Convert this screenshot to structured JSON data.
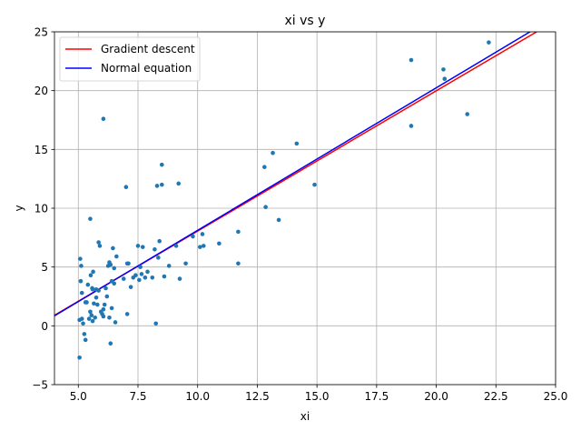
{
  "chart_data": {
    "type": "scatter",
    "title": "xi vs y",
    "xlabel": "xi",
    "ylabel": "y",
    "xlim": [
      4,
      25
    ],
    "ylim": [
      -5,
      25
    ],
    "xticks": [
      5.0,
      7.5,
      10.0,
      12.5,
      15.0,
      17.5,
      20.0,
      22.5,
      25.0
    ],
    "xtick_labels": [
      "5.0",
      "7.5",
      "10.0",
      "12.5",
      "15.0",
      "17.5",
      "20.0",
      "22.5",
      "25.0"
    ],
    "yticks": [
      -5,
      0,
      5,
      10,
      15,
      20,
      25
    ],
    "ytick_labels": [
      "−5",
      "0",
      "5",
      "10",
      "15",
      "20",
      "25"
    ],
    "grid": true,
    "legend_position": "top-left",
    "points": {
      "color": "#1f77b4",
      "x": [
        5.05,
        5.08,
        5.1,
        5.12,
        5.15,
        5.2,
        5.25,
        5.3,
        5.35,
        5.4,
        5.45,
        5.5,
        5.5,
        5.52,
        5.55,
        5.58,
        5.6,
        5.62,
        5.65,
        5.7,
        5.75,
        5.8,
        5.85,
        5.9,
        5.95,
        6.0,
        6.05,
        6.1,
        6.15,
        6.2,
        6.25,
        6.3,
        6.35,
        6.4,
        6.45,
        6.5,
        6.55,
        6.6,
        6.05,
        6.3,
        6.5,
        5.05,
        5.3,
        5.75,
        6.9,
        7.0,
        7.05,
        7.2,
        7.3,
        7.4,
        7.5,
        7.55,
        7.6,
        7.65,
        7.7,
        7.8,
        7.9,
        8.1,
        8.2,
        8.3,
        8.35,
        8.4,
        8.5,
        8.5,
        8.6,
        8.8,
        9.1,
        9.2,
        9.25,
        9.5,
        9.8,
        10.1,
        10.2,
        10.25,
        10.9,
        11.7,
        11.7,
        12.8,
        12.85,
        13.15,
        13.4,
        14.15,
        14.9,
        18.95,
        18.95,
        20.3,
        20.35,
        21.3,
        22.2,
        6.35,
        5.15,
        8.25,
        7.05,
        5.6,
        5.85,
        6.05,
        6.4,
        7.1
      ],
      "y": [
        -2.7,
        5.7,
        3.8,
        5.1,
        2.8,
        0.2,
        -0.7,
        -1.2,
        2.0,
        3.5,
        0.6,
        1.2,
        9.1,
        4.3,
        0.9,
        3.2,
        0.4,
        4.6,
        1.9,
        0.7,
        2.4,
        1.8,
        7.1,
        6.8,
        1.2,
        1.0,
        17.6,
        1.8,
        3.2,
        2.5,
        5.1,
        5.4,
        5.2,
        3.8,
        6.6,
        4.9,
        0.3,
        5.9,
        0.8,
        0.7,
        3.6,
        0.5,
        2.0,
        3.1,
        4.0,
        11.8,
        1.0,
        3.3,
        4.1,
        4.3,
        6.8,
        3.9,
        5.0,
        4.4,
        6.7,
        4.1,
        4.6,
        4.1,
        6.5,
        11.9,
        5.8,
        7.2,
        12.0,
        13.7,
        4.2,
        5.1,
        6.8,
        12.1,
        4.0,
        5.3,
        7.6,
        6.7,
        7.8,
        6.8,
        7.0,
        5.3,
        8.0,
        13.5,
        10.1,
        14.7,
        9.0,
        15.5,
        12.0,
        22.6,
        17.0,
        21.8,
        21.0,
        18.0,
        24.1,
        -1.5,
        0.6,
        0.2,
        5.3,
        3.1,
        3.0,
        1.4,
        1.5,
        5.3
      ]
    },
    "series": [
      {
        "name": "Gradient descent",
        "color": "#ff0000",
        "type": "line",
        "x": [
          4,
          25
        ],
        "y": [
          0.9,
          25.95
        ]
      },
      {
        "name": "Normal equation",
        "color": "#0000ff",
        "type": "line",
        "x": [
          4,
          25
        ],
        "y": [
          0.85,
          26.3
        ]
      }
    ]
  }
}
